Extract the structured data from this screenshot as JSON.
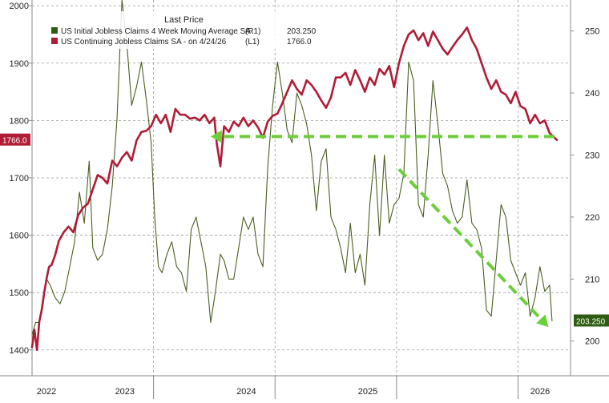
{
  "legend": {
    "header": "Last Price",
    "items": [
      {
        "label": "US Initial Jobless Claims 4 Week Moving Average SA",
        "axis": "(R1)",
        "value": "203.250",
        "color": "#2e5c12"
      },
      {
        "label": "US Continuing Jobless Claims SA -  on 4/24/26",
        "axis": "(L1)",
        "value": "1766.0",
        "color": "#b01c36"
      }
    ]
  },
  "badges": {
    "left": "1766.0",
    "right": "203.250"
  },
  "chart_data": {
    "type": "line",
    "x_tick_labels": [
      "2022",
      "2023",
      "2024",
      "2025",
      "2026"
    ],
    "left_axis": {
      "ticks": [
        1400,
        1500,
        1600,
        1700,
        1800,
        1900,
        2000
      ],
      "ylim": [
        1355,
        2010
      ]
    },
    "right_axis": {
      "ticks": [
        200,
        210,
        220,
        230,
        240,
        250
      ],
      "ylim": [
        194.4,
        255
      ]
    },
    "grid": true,
    "legend_position": "top-left",
    "series": [
      {
        "name": "US Continuing Jobless Claims SA -  on 4/24/26",
        "axis": "left",
        "color": "#b01c36",
        "x": [
          2022.0,
          2022.02,
          2022.04,
          2022.06,
          2022.08,
          2022.1,
          2022.12,
          2022.14,
          2022.16,
          2022.19,
          2022.22,
          2022.26,
          2022.3,
          2022.34,
          2022.38,
          2022.42,
          2022.46,
          2022.5,
          2022.54,
          2022.58,
          2022.62,
          2022.66,
          2022.7,
          2022.74,
          2022.78,
          2022.82,
          2022.86,
          2022.9,
          2022.94,
          2022.98,
          2023.02,
          2023.06,
          2023.1,
          2023.14,
          2023.18,
          2023.22,
          2023.26,
          2023.3,
          2023.34,
          2023.38,
          2023.42,
          2023.46,
          2023.5,
          2023.52,
          2023.55,
          2023.58,
          2023.62,
          2023.66,
          2023.7,
          2023.74,
          2023.78,
          2023.82,
          2023.86,
          2023.9,
          2023.94,
          2023.98,
          2024.02,
          2024.06,
          2024.1,
          2024.14,
          2024.18,
          2024.22,
          2024.26,
          2024.3,
          2024.34,
          2024.38,
          2024.42,
          2024.46,
          2024.5,
          2024.54,
          2024.58,
          2024.62,
          2024.66,
          2024.7,
          2024.74,
          2024.78,
          2024.82,
          2024.86,
          2024.9,
          2024.94,
          2024.98,
          2025.02,
          2025.06,
          2025.1,
          2025.14,
          2025.18,
          2025.22,
          2025.26,
          2025.3,
          2025.34,
          2025.38,
          2025.42,
          2025.46,
          2025.5,
          2025.54,
          2025.58,
          2025.62,
          2025.66,
          2025.7,
          2025.74,
          2025.78,
          2025.82,
          2025.86,
          2025.9,
          2025.94,
          2025.98,
          2026.02,
          2026.06,
          2026.1,
          2026.14,
          2026.18,
          2026.22,
          2026.26,
          2026.3,
          2026.32
        ],
        "y": [
          1405,
          1435,
          1400,
          1450,
          1470,
          1500,
          1525,
          1545,
          1548,
          1565,
          1590,
          1605,
          1615,
          1605,
          1635,
          1648,
          1655,
          1680,
          1705,
          1700,
          1690,
          1730,
          1720,
          1735,
          1745,
          1730,
          1765,
          1780,
          1782,
          1790,
          1810,
          1795,
          1810,
          1780,
          1820,
          1810,
          1810,
          1803,
          1805,
          1800,
          1810,
          1795,
          1805,
          1760,
          1720,
          1790,
          1780,
          1798,
          1790,
          1805,
          1790,
          1800,
          1788,
          1770,
          1798,
          1808,
          1812,
          1830,
          1850,
          1870,
          1855,
          1845,
          1870,
          1862,
          1850,
          1835,
          1822,
          1840,
          1875,
          1875,
          1883,
          1862,
          1888,
          1870,
          1850,
          1875,
          1862,
          1890,
          1880,
          1895,
          1858,
          1900,
          1930,
          1950,
          1957,
          1940,
          1952,
          1930,
          1955,
          1940,
          1925,
          1915,
          1928,
          1940,
          1950,
          1962,
          1940,
          1925,
          1900,
          1875,
          1855,
          1870,
          1850,
          1845,
          1830,
          1850,
          1825,
          1820,
          1795,
          1810,
          1795,
          1800,
          1778,
          1770,
          1766
        ]
      },
      {
        "name": "US Initial Jobless Claims 4 Week Moving Average SA",
        "axis": "right",
        "color": "#4a5e22",
        "x": [
          2022.0,
          2022.03,
          2022.06,
          2022.09,
          2022.12,
          2022.15,
          2022.19,
          2022.23,
          2022.27,
          2022.31,
          2022.35,
          2022.39,
          2022.43,
          2022.47,
          2022.5,
          2022.54,
          2022.58,
          2022.62,
          2022.66,
          2022.7,
          2022.74,
          2022.78,
          2022.82,
          2022.86,
          2022.9,
          2022.94,
          2022.98,
          2023.01,
          2023.04,
          2023.07,
          2023.11,
          2023.15,
          2023.19,
          2023.23,
          2023.27,
          2023.31,
          2023.35,
          2023.39,
          2023.43,
          2023.47,
          2023.51,
          2023.55,
          2023.58,
          2023.62,
          2023.66,
          2023.7,
          2023.74,
          2023.78,
          2023.82,
          2023.86,
          2023.9,
          2023.94,
          2023.98,
          2024.02,
          2024.06,
          2024.1,
          2024.14,
          2024.18,
          2024.22,
          2024.26,
          2024.3,
          2024.34,
          2024.38,
          2024.42,
          2024.46,
          2024.5,
          2024.54,
          2024.58,
          2024.62,
          2024.66,
          2024.7,
          2024.74,
          2024.78,
          2024.82,
          2024.86,
          2024.9,
          2024.94,
          2024.98,
          2025.02,
          2025.06,
          2025.1,
          2025.14,
          2025.18,
          2025.22,
          2025.26,
          2025.3,
          2025.34,
          2025.38,
          2025.42,
          2025.46,
          2025.5,
          2025.54,
          2025.58,
          2025.62,
          2025.66,
          2025.7,
          2025.74,
          2025.78,
          2025.82,
          2025.86,
          2025.9,
          2025.94,
          2025.98,
          2026.02,
          2026.06,
          2026.1,
          2026.14,
          2026.18,
          2026.22,
          2026.26,
          2026.28
        ],
        "y": [
          201,
          203,
          203,
          207,
          210,
          209,
          207,
          206,
          208,
          212,
          216,
          224,
          219,
          229,
          215,
          213,
          214,
          218,
          225,
          236,
          255,
          248,
          238,
          241,
          245,
          239,
          232,
          220,
          212,
          211,
          214,
          216,
          212,
          211,
          208,
          218,
          220,
          216,
          212,
          203,
          208,
          214,
          213,
          210,
          210,
          215,
          220,
          218,
          220,
          214,
          212,
          228,
          238,
          245,
          240,
          234,
          232,
          240,
          238,
          235,
          230,
          221,
          229,
          231,
          220,
          218,
          215,
          211,
          219,
          211,
          214,
          209,
          222,
          230,
          217,
          230,
          219,
          222,
          223,
          227,
          245,
          242,
          222,
          220,
          230,
          242,
          235,
          227,
          225,
          221,
          219,
          220,
          226,
          219,
          218,
          215,
          205,
          204,
          213,
          222,
          220,
          213,
          211,
          209,
          211,
          204,
          207,
          212,
          208,
          209,
          203.25
        ]
      }
    ],
    "annotations": [
      {
        "type": "dashed-arrow",
        "color": "#6ccf3a",
        "from": {
          "x": 2026.3,
          "y": 1772,
          "axis": "left"
        },
        "to": {
          "x": 2023.47,
          "y": 1772,
          "axis": "left"
        }
      },
      {
        "type": "dashed-arrow",
        "color": "#6ccf3a",
        "from": {
          "x": 2025.02,
          "y": 1715,
          "axis": "left"
        },
        "to": {
          "x": 2026.25,
          "y": 1440,
          "axis": "left"
        }
      }
    ]
  }
}
